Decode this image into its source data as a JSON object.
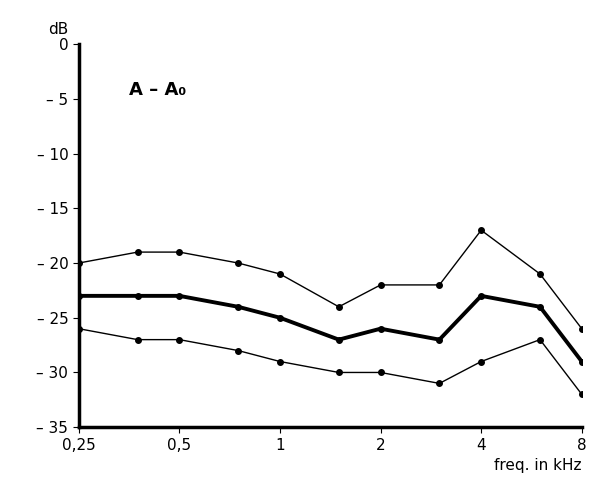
{
  "chart_data": {
    "type": "line",
    "y_label": "dB",
    "x_label": "freq. in kHz",
    "annotations": [
      "A – A₀"
    ],
    "x": [
      0.25,
      0.375,
      0.5,
      0.75,
      1,
      1.5,
      2,
      3,
      4,
      6,
      8
    ],
    "series": [
      {
        "color": "#000000",
        "marker": "o",
        "line_style": "solid",
        "values": [
          -20,
          -19,
          -19,
          -20,
          -21,
          -24,
          -22,
          -22,
          -17,
          -21,
          -26
        ]
      },
      {
        "color": "#000000",
        "marker": "o",
        "line_style": "solid",
        "values": [
          -23,
          -23,
          -23,
          -24,
          -25,
          -27,
          -26,
          -27,
          -23,
          -24,
          -29
        ]
      },
      {
        "color": "#000000",
        "marker": "o",
        "line_style": "solid",
        "values": [
          -26,
          -27,
          -27,
          -28,
          -29,
          -30,
          -30,
          -31,
          -29,
          -27,
          -32
        ]
      }
    ],
    "log": "x",
    "xlim": [
      0.25,
      8
    ],
    "xticks": [
      {
        "value": 0.25,
        "label": "0,25"
      },
      {
        "value": 0.5,
        "label": "0,5"
      },
      1,
      2,
      4,
      8
    ],
    "ylim": [
      -35,
      0
    ],
    "yticks": [
      0,
      {
        "value": -5,
        "label": "– 5"
      },
      {
        "value": -10,
        "label": "– 10"
      },
      {
        "value": -15,
        "label": "– 15"
      },
      {
        "value": -20,
        "label": "– 20"
      },
      {
        "value": -25,
        "label": "– 25"
      },
      {
        "value": -30,
        "label": "– 30"
      },
      {
        "value": -35,
        "label": "– 35"
      }
    ],
    "grid": false
  }
}
